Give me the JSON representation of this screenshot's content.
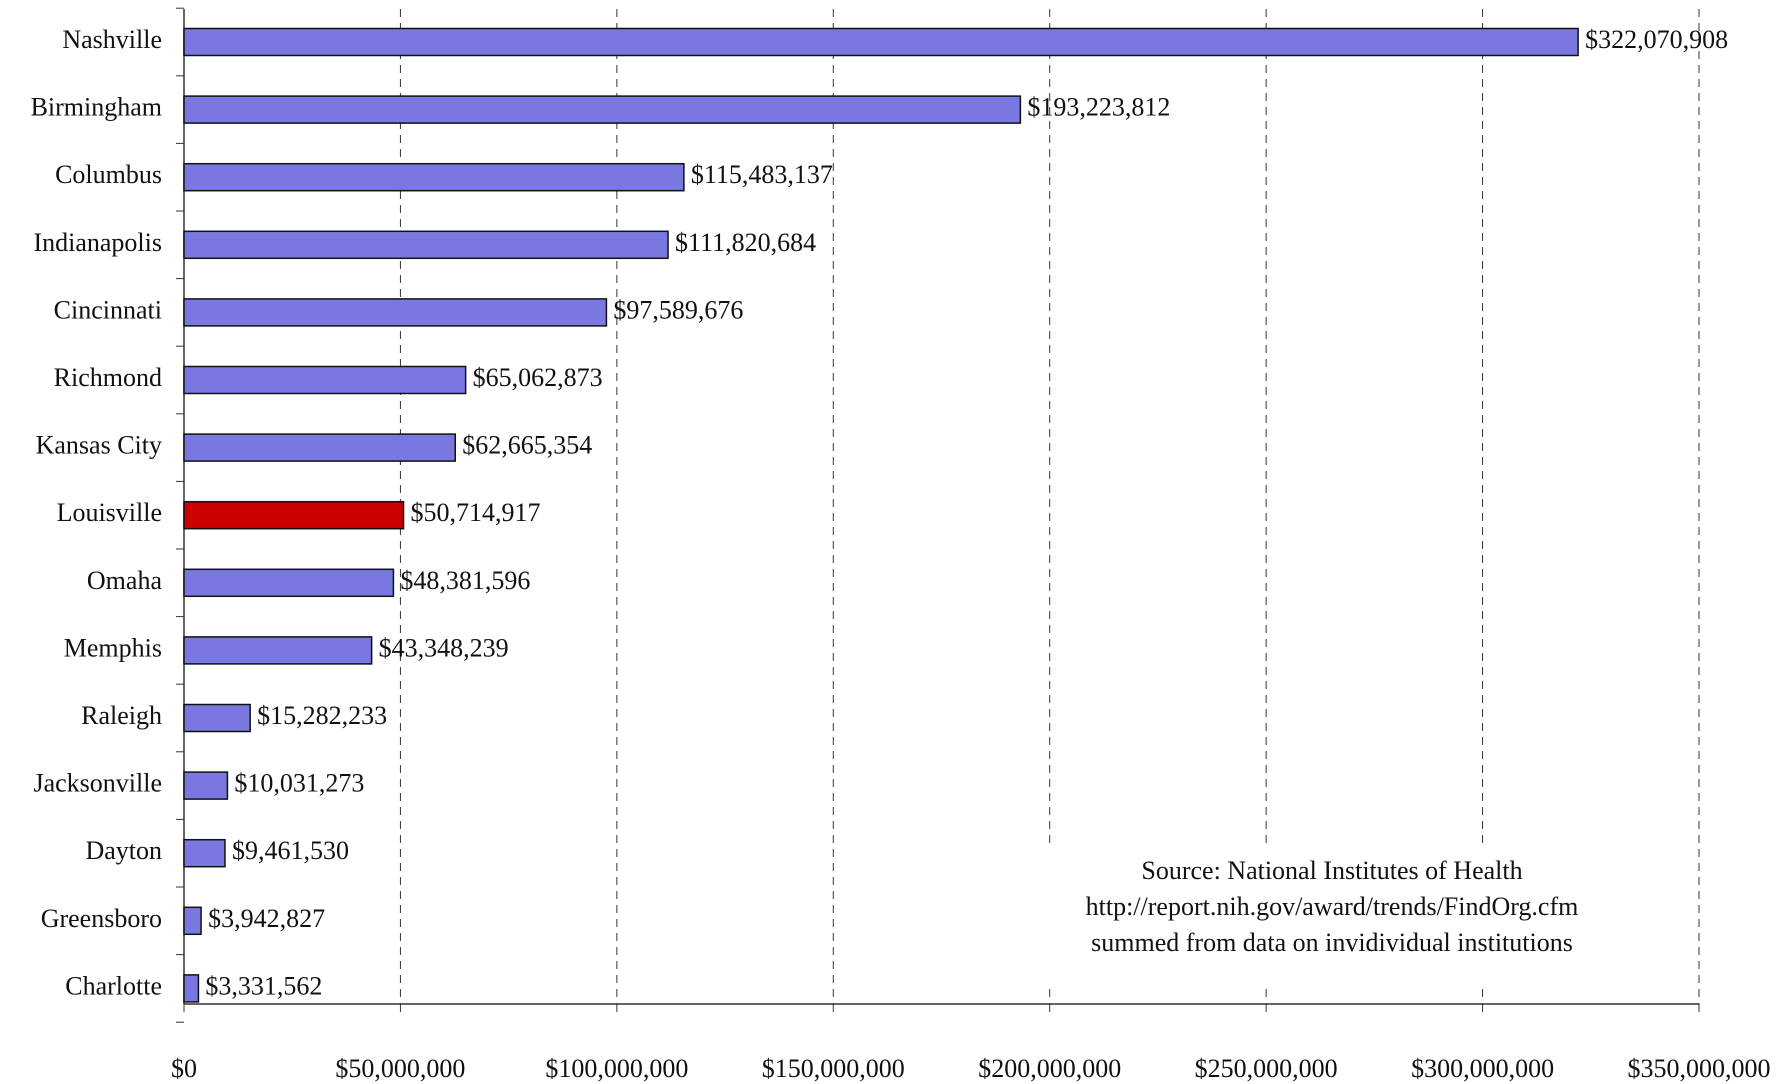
{
  "chart_data": {
    "type": "barh",
    "categories": [
      "Nashville",
      "Birmingham",
      "Columbus",
      "Indianapolis",
      "Cincinnati",
      "Richmond",
      "Kansas City",
      "Louisville",
      "Omaha",
      "Memphis",
      "Raleigh",
      "Jacksonville",
      "Dayton",
      "Greensboro",
      "Charlotte"
    ],
    "values": [
      322070908,
      193223812,
      115483137,
      111820684,
      97589676,
      65062873,
      62665354,
      50714917,
      48381596,
      43348239,
      15282233,
      10031273,
      9461530,
      3942827,
      3331562
    ],
    "value_labels": [
      "$322,070,908",
      "$193,223,812",
      "$115,483,137",
      "$111,820,684",
      "$97,589,676",
      "$65,062,873",
      "$62,665,354",
      "$50,714,917",
      "$48,381,596",
      "$43,348,239",
      "$15,282,233",
      "$10,031,273",
      "$9,461,530",
      "$3,942,827",
      "$3,331,562"
    ],
    "colors": [
      "#7878e0",
      "#7878e0",
      "#7878e0",
      "#7878e0",
      "#7878e0",
      "#7878e0",
      "#7878e0",
      "#cc0000",
      "#7878e0",
      "#7878e0",
      "#7878e0",
      "#7878e0",
      "#7878e0",
      "#7878e0",
      "#7878e0"
    ],
    "xlim": [
      0,
      350000000
    ],
    "xticks": [
      {
        "value": 0,
        "label": "$0"
      },
      {
        "value": 50000000,
        "label": "$50,000,000"
      },
      {
        "value": 100000000,
        "label": "$100,000,000"
      },
      {
        "value": 150000000,
        "label": "$150,000,000"
      },
      {
        "value": 200000000,
        "label": "$200,000,000"
      },
      {
        "value": 250000000,
        "label": "$250,000,000"
      },
      {
        "value": 300000000,
        "label": "$300,000,000"
      },
      {
        "value": 350000000,
        "label": "$350,000,000"
      }
    ],
    "grid": true,
    "annotation": [
      "Source: National Institutes of Health",
      "http://report.nih.gov/award/trends/FindOrg.cfm",
      "summed from data on invidividual institutions"
    ]
  }
}
